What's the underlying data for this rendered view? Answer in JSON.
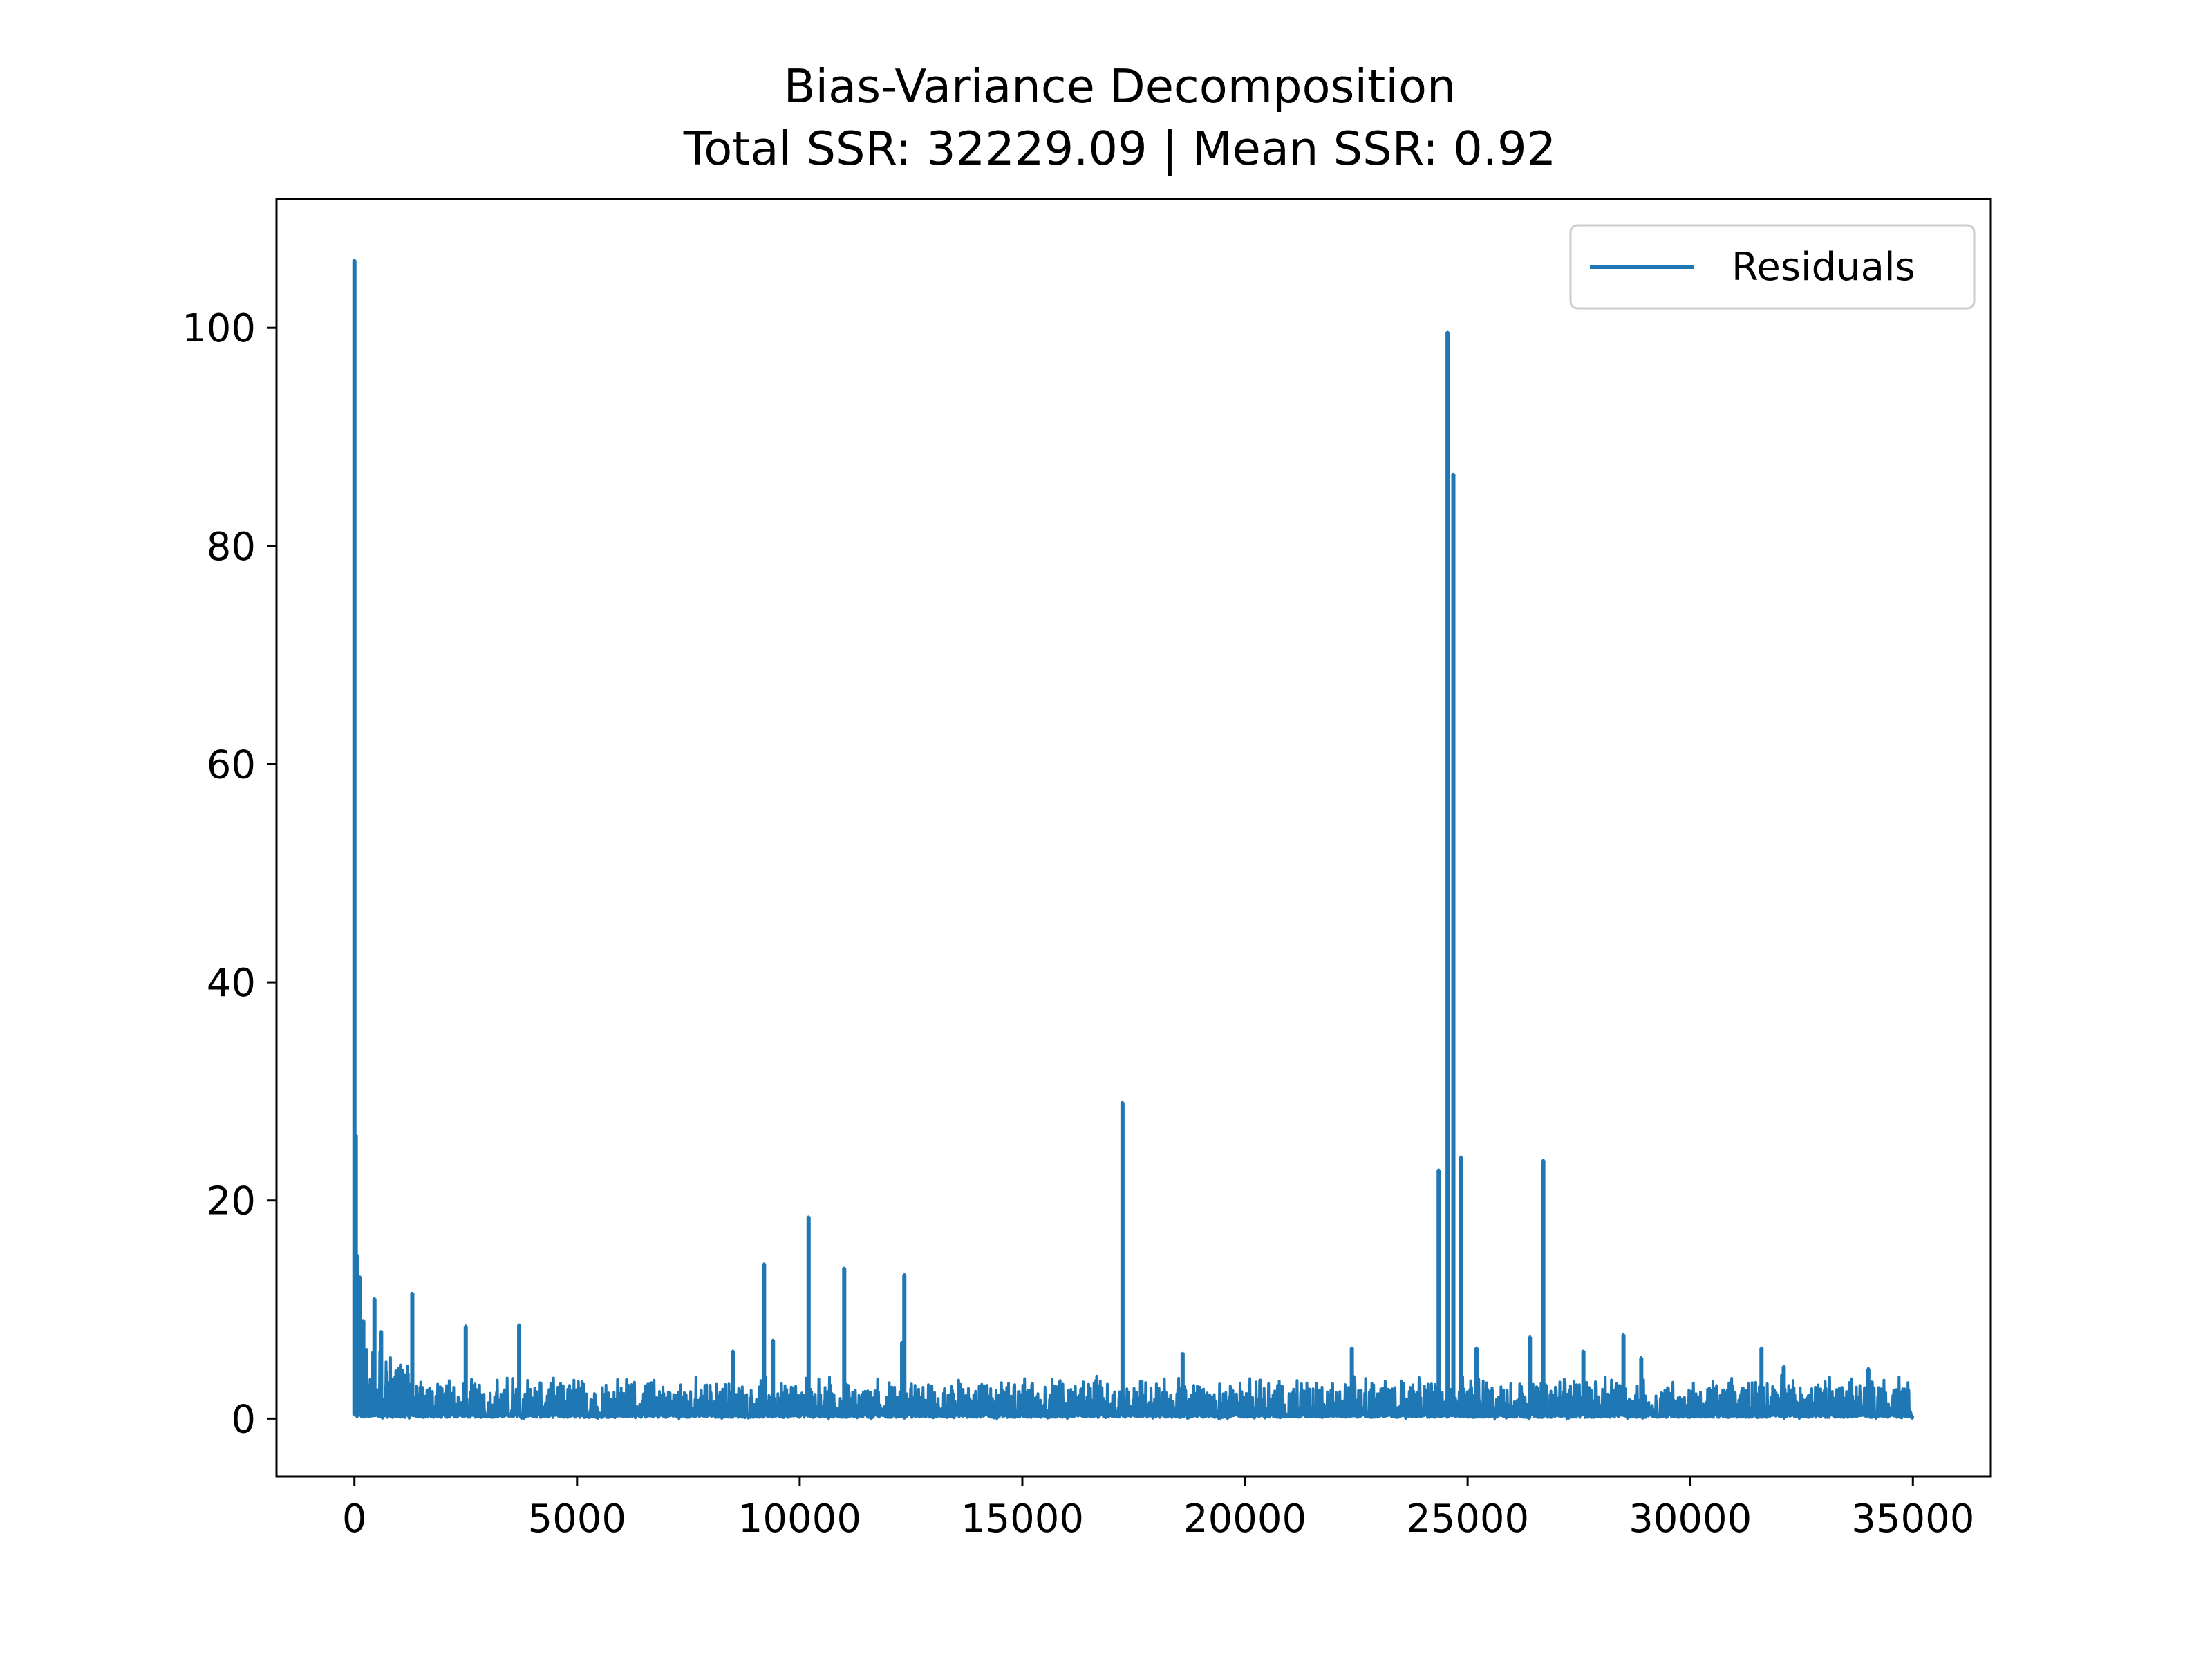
{
  "chart_data": {
    "type": "line",
    "title": "Bias-Variance Decomposition",
    "subtitle": "Total SSR: 32229.09 | Mean SSR: 0.92",
    "xlabel": "",
    "ylabel": "",
    "xlim": [
      -1750,
      36750
    ],
    "ylim": [
      -5.3,
      111.8
    ],
    "x_ticks": [
      0,
      5000,
      10000,
      15000,
      20000,
      25000,
      30000,
      35000
    ],
    "x_tick_labels": [
      "0",
      "5000",
      "10000",
      "15000",
      "20000",
      "25000",
      "30000",
      "35000"
    ],
    "y_ticks": [
      0,
      20,
      40,
      60,
      80,
      100
    ],
    "y_tick_labels": [
      "0",
      "20",
      "40",
      "60",
      "80",
      "100"
    ],
    "grid": false,
    "legend": {
      "position": "top-right",
      "entries": [
        "Residuals"
      ]
    },
    "n_points": 35000,
    "series": [
      {
        "name": "Residuals",
        "color": "#1f77b4",
        "spikes": [
          {
            "x": 0,
            "y": 106.2
          },
          {
            "x": 30,
            "y": 26.0
          },
          {
            "x": 60,
            "y": 15.0
          },
          {
            "x": 120,
            "y": 13.0
          },
          {
            "x": 200,
            "y": 9.0
          },
          {
            "x": 450,
            "y": 11.0
          },
          {
            "x": 600,
            "y": 8.0
          },
          {
            "x": 1300,
            "y": 11.5
          },
          {
            "x": 2500,
            "y": 8.5
          },
          {
            "x": 3700,
            "y": 8.6
          },
          {
            "x": 8500,
            "y": 6.2
          },
          {
            "x": 9200,
            "y": 14.2
          },
          {
            "x": 9400,
            "y": 7.2
          },
          {
            "x": 10200,
            "y": 18.5
          },
          {
            "x": 11000,
            "y": 13.8
          },
          {
            "x": 12350,
            "y": 13.2
          },
          {
            "x": 12300,
            "y": 7.0
          },
          {
            "x": 17250,
            "y": 29.0
          },
          {
            "x": 18600,
            "y": 6.0
          },
          {
            "x": 22400,
            "y": 6.5
          },
          {
            "x": 24350,
            "y": 22.8
          },
          {
            "x": 24550,
            "y": 99.6
          },
          {
            "x": 24680,
            "y": 86.6
          },
          {
            "x": 24850,
            "y": 24.0
          },
          {
            "x": 25200,
            "y": 6.5
          },
          {
            "x": 26400,
            "y": 7.5
          },
          {
            "x": 26700,
            "y": 23.7
          },
          {
            "x": 27600,
            "y": 6.2
          },
          {
            "x": 28500,
            "y": 7.7
          },
          {
            "x": 28900,
            "y": 5.6
          },
          {
            "x": 31600,
            "y": 6.5
          },
          {
            "x": 32100,
            "y": 4.8
          },
          {
            "x": 34000,
            "y": 4.6
          }
        ],
        "baseline_level": 2.0
      }
    ]
  }
}
